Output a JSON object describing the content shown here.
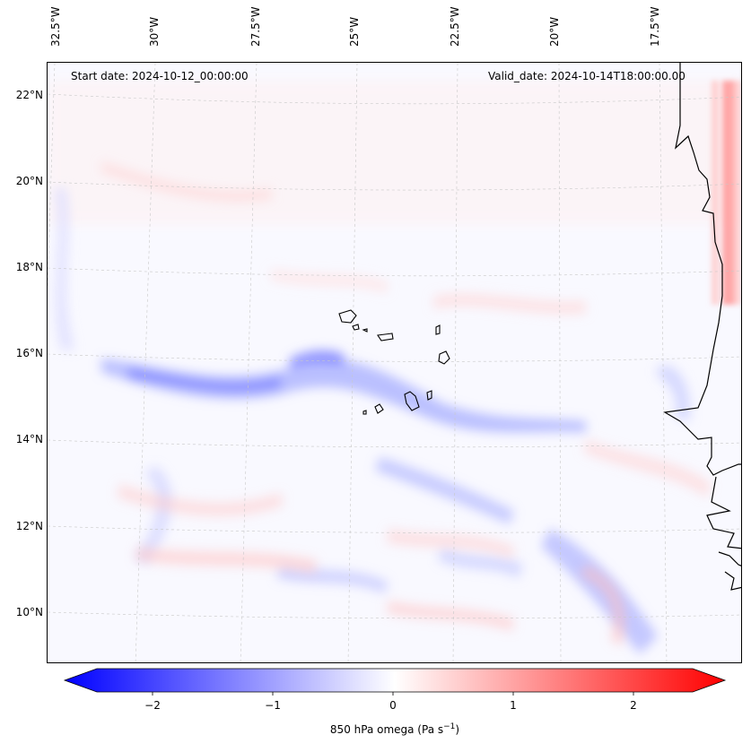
{
  "map": {
    "lon_labels": [
      "32.5°W",
      "30°W",
      "27.5°W",
      "25°W",
      "22.5°W",
      "20°W",
      "17.5°W"
    ],
    "lat_labels": [
      "22°N",
      "20°N",
      "18°N",
      "16°N",
      "14°N",
      "12°N",
      "10°N"
    ],
    "start_date": "Start date: 2024-10-12_00:00:00",
    "valid_date": "Valid_date: 2024-10-14T18:00:00.00"
  },
  "colorbar": {
    "label": "850 hPa omega (Pa s",
    "label_sup": "−1",
    "label_close": ")",
    "ticks": [
      "−2",
      "−1",
      "0",
      "1",
      "2"
    ],
    "min": -2.75,
    "max": 2.75,
    "low_color": "#0000ff",
    "mid_color": "#ffffff",
    "high_color": "#ff0000"
  }
}
